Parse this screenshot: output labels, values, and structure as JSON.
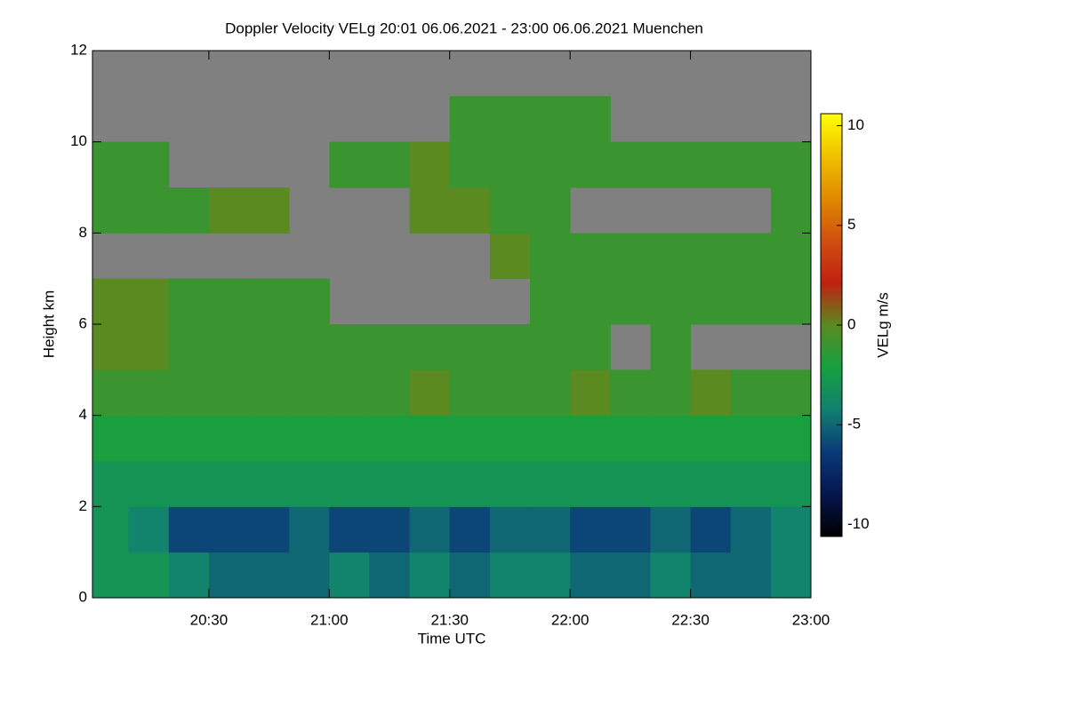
{
  "chart_data": {
    "type": "heatmap",
    "title": "Doppler Velocity VELg   20:01 06.06.2021 - 23:00 06.06.2021 Muenchen",
    "x_label": "Time UTC",
    "y_label": "Height km",
    "colorbar_label": "VELg m/s",
    "x_bins": [
      1201,
      1210,
      1220,
      1230,
      1240,
      1250,
      1260,
      1270,
      1280,
      1290,
      1300,
      1310,
      1320,
      1330,
      1340,
      1350,
      1360,
      1370,
      1380
    ],
    "y_bins": [
      0,
      1,
      2,
      3,
      4,
      5,
      6,
      7,
      8,
      9,
      10,
      11,
      12
    ],
    "values": [
      [
        -3,
        -3,
        -4,
        -5,
        -5,
        -5,
        -4,
        -5,
        -4,
        -5,
        -4,
        -4,
        -5,
        -5,
        -4,
        -5,
        -5,
        -4
      ],
      [
        -3,
        -4,
        -6,
        -6,
        -6,
        -5,
        -6,
        -6,
        -5,
        -6,
        -5,
        -5,
        -6,
        -6,
        -5,
        -6,
        -5,
        -4
      ],
      [
        -3,
        -3,
        -3,
        -3,
        -3,
        -3,
        -3,
        -3,
        -3,
        -3,
        -3,
        -3,
        -3,
        -3,
        -3,
        -3,
        -3,
        -3
      ],
      [
        -2,
        -2,
        -2,
        -2,
        -2,
        -2,
        -2,
        -2,
        -2,
        -2,
        -2,
        -2,
        -2,
        -2,
        -2,
        -2,
        -2,
        -2
      ],
      [
        -1,
        -1,
        -1,
        -1,
        -1,
        -1,
        -1,
        -1,
        0,
        -1,
        -1,
        -1,
        0,
        -1,
        -1,
        0,
        -1,
        -1
      ],
      [
        0,
        0,
        -1,
        -1,
        -1,
        -1,
        -1,
        -1,
        -1,
        -1,
        -1,
        -1,
        -1,
        null,
        -1,
        null,
        null,
        null
      ],
      [
        0,
        0,
        -1,
        -1,
        -1,
        -1,
        null,
        null,
        null,
        null,
        null,
        -1,
        -1,
        -1,
        -1,
        -1,
        -1,
        -1
      ],
      [
        null,
        null,
        null,
        null,
        null,
        null,
        null,
        null,
        null,
        null,
        0,
        -1,
        -1,
        -1,
        -1,
        -1,
        -1,
        -1
      ],
      [
        -1,
        -1,
        -1,
        0,
        0,
        null,
        null,
        null,
        0,
        0,
        -1,
        -1,
        null,
        null,
        null,
        null,
        null,
        -1
      ],
      [
        -1,
        -1,
        null,
        null,
        null,
        null,
        -1,
        -1,
        0,
        -1,
        -1,
        -1,
        -1,
        -1,
        -1,
        -1,
        -1,
        -1
      ],
      [
        null,
        null,
        null,
        null,
        null,
        null,
        null,
        null,
        null,
        -1,
        -1,
        -1,
        -1,
        null,
        null,
        null,
        null,
        null
      ],
      [
        null,
        null,
        null,
        null,
        null,
        null,
        null,
        null,
        null,
        null,
        null,
        null,
        null,
        null,
        null,
        null,
        null,
        null
      ]
    ],
    "missing_color": "#808080",
    "colorscale": [
      "#000000",
      "#061650",
      "#0a3a78",
      "#108070",
      "#16a040",
      "#5a8a20",
      "#c02010",
      "#d05010",
      "#e08a00",
      "#f0c000",
      "#ffff00"
    ],
    "clim": [
      -10.6,
      10.6
    ],
    "cticks": [
      10,
      5,
      0,
      -5,
      -10
    ],
    "xlim": [
      1201,
      1380
    ],
    "xticks": [
      {
        "value": 1230,
        "label": "20:30"
      },
      {
        "value": 1260,
        "label": "21:00"
      },
      {
        "value": 1290,
        "label": "21:30"
      },
      {
        "value": 1320,
        "label": "22:00"
      },
      {
        "value": 1350,
        "label": "22:30"
      },
      {
        "value": 1380,
        "label": "23:00"
      }
    ],
    "ylim": [
      0,
      12
    ],
    "yticks": [
      0,
      2,
      4,
      6,
      8,
      10,
      12
    ]
  }
}
